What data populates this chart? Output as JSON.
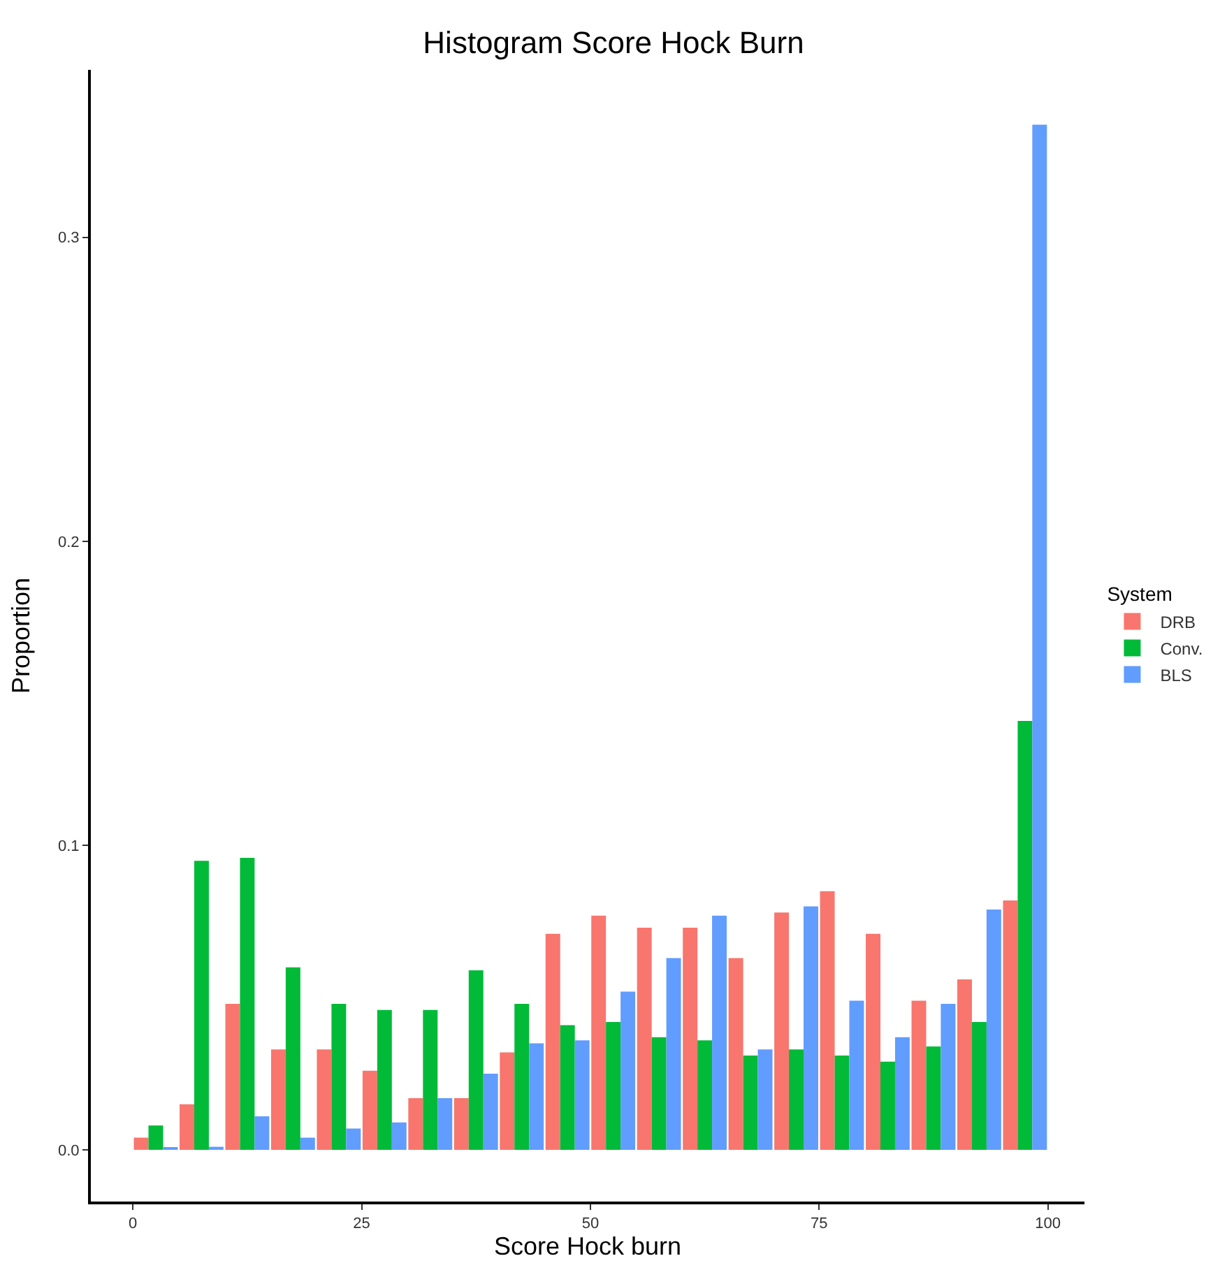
{
  "chart_data": {
    "type": "histogram",
    "title": "Histogram Score Hock Burn",
    "xlabel": "Score Hock burn",
    "ylabel": "Proportion",
    "legend_title": "System",
    "bins": [
      0,
      5,
      10,
      15,
      20,
      25,
      30,
      35,
      40,
      45,
      50,
      55,
      60,
      65,
      70,
      75,
      80,
      85,
      90,
      95,
      100
    ],
    "series": [
      {
        "name": "DRB",
        "color": "#f8766d",
        "values": [
          0.004,
          0.015,
          0.048,
          0.033,
          0.033,
          0.026,
          0.017,
          0.017,
          0.032,
          0.071,
          0.077,
          0.073,
          0.073,
          0.063,
          0.078,
          0.085,
          0.071,
          0.049,
          0.056,
          0.082
        ]
      },
      {
        "name": "Conv.",
        "color": "#00ba38",
        "values": [
          0.008,
          0.095,
          0.096,
          0.06,
          0.048,
          0.046,
          0.046,
          0.059,
          0.048,
          0.041,
          0.042,
          0.037,
          0.036,
          0.031,
          0.033,
          0.031,
          0.029,
          0.034,
          0.042,
          0.141
        ]
      },
      {
        "name": "BLS",
        "color": "#619cff",
        "values": [
          0.0005,
          0.001,
          0.011,
          0.004,
          0.007,
          0.009,
          0.017,
          0.025,
          0.035,
          0.036,
          0.052,
          0.063,
          0.077,
          0.033,
          0.08,
          0.049,
          0.037,
          0.048,
          0.079,
          0.337
        ]
      }
    ],
    "xlim": [
      -4.6,
      104
    ],
    "xticks": [
      0,
      25,
      50,
      75,
      100
    ],
    "ylim": [
      -0.017,
      0.355
    ],
    "yticks": [
      {
        "value": 0,
        "label": "0.0"
      },
      {
        "value": 0.1,
        "label": "0.1"
      },
      {
        "value": 0.2,
        "label": "0.2"
      },
      {
        "value": 0.3,
        "label": "0.3"
      }
    ],
    "legend": "right"
  }
}
